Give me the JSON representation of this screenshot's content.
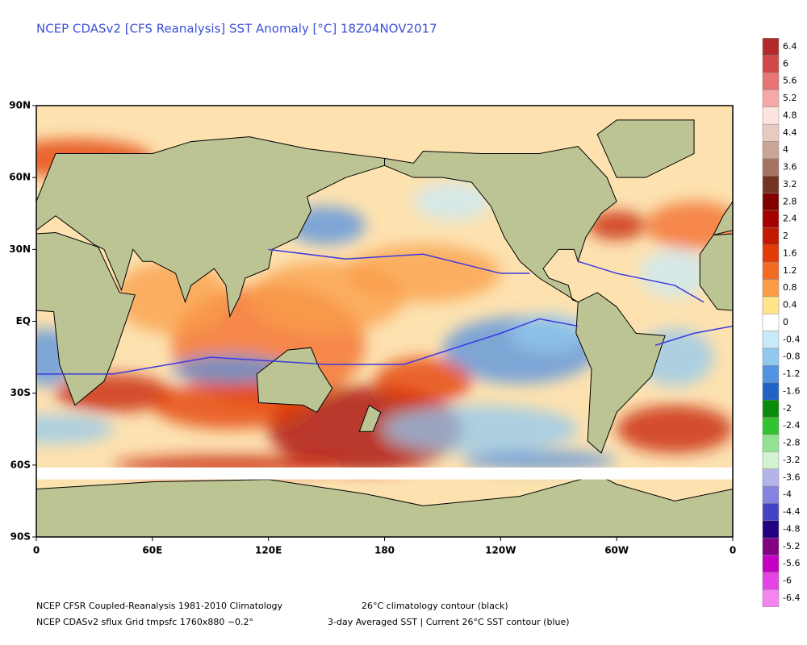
{
  "title": "NCEP CDASv2 [CFS Reanalysis] SST Anomaly [°C] 18Z04NOV2017",
  "lat_labels": [
    "90N",
    "60N",
    "30N",
    "EQ",
    "30S",
    "60S",
    "90S"
  ],
  "lon_labels": [
    "0",
    "60E",
    "120E",
    "180",
    "120W",
    "60W",
    "0"
  ],
  "colorbar": {
    "ticks": [
      6.4,
      6,
      5.6,
      5.2,
      4.8,
      4.4,
      4,
      3.6,
      3.2,
      2.8,
      2.4,
      2,
      1.6,
      1.2,
      0.8,
      0.4,
      0,
      -0.4,
      -0.8,
      -1.2,
      -1.6,
      -2,
      -2.4,
      -2.8,
      -3.2,
      -3.6,
      -4,
      -4.4,
      -4.8,
      -5.2,
      -5.6,
      -6,
      -6.4
    ],
    "colors": [
      "#b22a2a",
      "#d04848",
      "#e87474",
      "#f5a8a8",
      "#fce4e0",
      "#e8cac0",
      "#caa494",
      "#a47462",
      "#743424",
      "#800000",
      "#a40000",
      "#c41800",
      "#e23a08",
      "#f26a26",
      "#fa9c48",
      "#ffe48a",
      "#ffffff",
      "#c8eaf8",
      "#92c8f0",
      "#5292e2",
      "#2262c4",
      "#0a8a0a",
      "#32c232",
      "#92e292",
      "#d2f2d2",
      "#b4b4ea",
      "#8484e0",
      "#4444c2",
      "#220082",
      "#820082",
      "#c400c4",
      "#e444e4",
      "#f484f0"
    ]
  },
  "footer": [
    [
      "NCEP CFSR Coupled-Reanalysis 1981-2010 Climatology",
      "26°C climatology contour (black)"
    ],
    [
      "NCEP CDASv2 sflux Grid tmpsfc 1760x880 ~0.2°",
      "3-day Averaged SST | Current 26°C SST contour (blue)"
    ]
  ]
}
